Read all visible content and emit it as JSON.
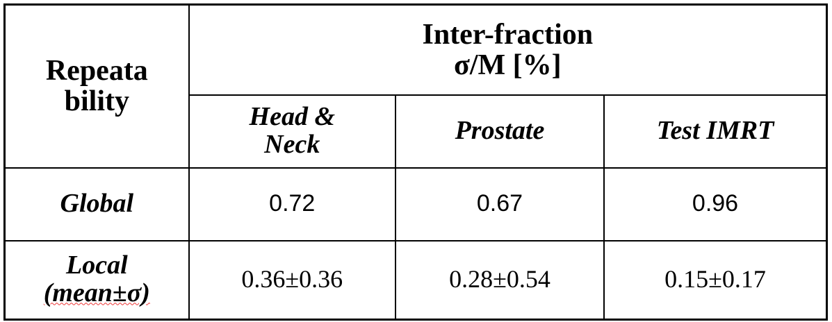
{
  "header": {
    "corner": [
      "Repeata",
      "bility"
    ],
    "group": [
      "Inter-fraction",
      "σ/M [%]"
    ],
    "columns": [
      [
        "Head &",
        "Neck"
      ],
      [
        "Prostate"
      ],
      [
        "Test IMRT"
      ]
    ]
  },
  "table": {
    "rows": [
      {
        "label": [
          "Global"
        ],
        "values": [
          0.72,
          0.67,
          0.96
        ]
      },
      {
        "label": [
          "Local",
          "(mean±σ)"
        ],
        "values": [
          "0.36±0.36",
          "0.28±0.54",
          "0.15±0.17"
        ]
      }
    ]
  }
}
